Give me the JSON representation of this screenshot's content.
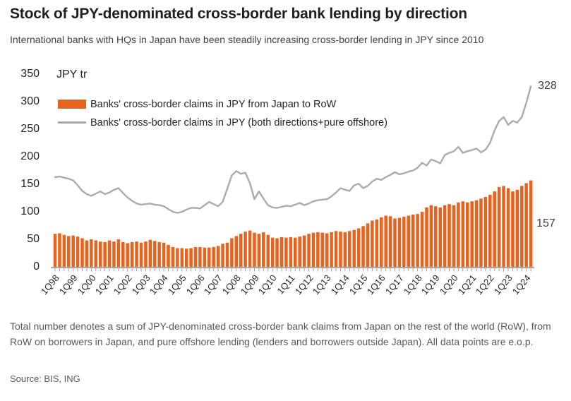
{
  "header": {
    "title": "Stock of JPY-denominated cross-border bank lending by direction",
    "subtitle": "International banks with HQs in Japan have been steadily increasing cross-border lending in JPY since 2010"
  },
  "chart": {
    "unit_label": "JPY tr",
    "legend": [
      {
        "label": "Banks' cross-border claims in JPY from Japan to RoW",
        "color": "#E8641E",
        "type": "bar"
      },
      {
        "label": "Banks' cross-border claims in JPY (both directions+pure offshore)",
        "color": "#ABABAB",
        "type": "line"
      }
    ]
  },
  "chart_data": {
    "type": "bar+line",
    "title": "Stock of JPY-denominated cross-border bank lending by direction",
    "ylabel": "JPY tr",
    "ylim": [
      0,
      350
    ],
    "yticks": [
      0,
      50,
      100,
      150,
      200,
      250,
      300,
      350
    ],
    "grid": false,
    "legend_position": "top-left",
    "x_tick_every": 4,
    "x": [
      "1Q98",
      "2Q98",
      "3Q98",
      "4Q98",
      "1Q99",
      "2Q99",
      "3Q99",
      "4Q99",
      "1Q00",
      "2Q00",
      "3Q00",
      "4Q00",
      "1Q01",
      "2Q01",
      "3Q01",
      "4Q01",
      "1Q02",
      "2Q02",
      "3Q02",
      "4Q02",
      "1Q03",
      "2Q03",
      "3Q03",
      "4Q03",
      "1Q04",
      "2Q04",
      "3Q04",
      "4Q04",
      "1Q05",
      "2Q05",
      "3Q05",
      "4Q05",
      "1Q06",
      "2Q06",
      "3Q06",
      "4Q06",
      "1Q07",
      "2Q07",
      "3Q07",
      "4Q07",
      "1Q08",
      "2Q08",
      "3Q08",
      "4Q08",
      "1Q09",
      "2Q09",
      "3Q09",
      "4Q09",
      "1Q10",
      "2Q10",
      "3Q10",
      "4Q10",
      "1Q11",
      "2Q11",
      "3Q11",
      "4Q11",
      "1Q12",
      "2Q12",
      "3Q12",
      "4Q12",
      "1Q13",
      "2Q13",
      "3Q13",
      "4Q13",
      "1Q14",
      "2Q14",
      "3Q14",
      "4Q14",
      "1Q15",
      "2Q15",
      "3Q15",
      "4Q15",
      "1Q16",
      "2Q16",
      "3Q16",
      "4Q16",
      "1Q17",
      "2Q17",
      "3Q17",
      "4Q17",
      "1Q18",
      "2Q18",
      "3Q18",
      "4Q18",
      "1Q19",
      "2Q19",
      "3Q19",
      "4Q19",
      "1Q20",
      "2Q20",
      "3Q20",
      "4Q20",
      "1Q21",
      "2Q21",
      "3Q21",
      "4Q21",
      "1Q22",
      "2Q22",
      "3Q22",
      "4Q22",
      "1Q23",
      "2Q23",
      "3Q23",
      "4Q23",
      "1Q24",
      "2Q24"
    ],
    "series": [
      {
        "name": "Banks' cross-border claims in JPY from Japan to RoW",
        "type": "bar",
        "color": "#E8641E",
        "values": [
          60,
          61,
          58,
          56,
          57,
          55,
          52,
          48,
          50,
          48,
          46,
          45,
          48,
          46,
          50,
          45,
          43,
          45,
          46,
          44,
          46,
          49,
          47,
          45,
          44,
          40,
          36,
          34,
          34,
          33,
          34,
          36,
          36,
          35,
          35,
          36,
          38,
          42,
          44,
          52,
          56,
          60,
          64,
          66,
          62,
          60,
          63,
          58,
          53,
          52,
          54,
          53,
          54,
          53,
          55,
          57,
          60,
          62,
          63,
          62,
          61,
          63,
          65,
          64,
          63,
          65,
          67,
          70,
          74,
          79,
          84,
          86,
          90,
          93,
          92,
          88,
          89,
          91,
          93,
          95,
          96,
          100,
          108,
          112,
          110,
          108,
          112,
          114,
          112,
          117,
          119,
          117,
          119,
          121,
          124,
          127,
          131,
          137,
          145,
          147,
          143,
          137,
          140,
          147,
          152,
          157
        ]
      },
      {
        "name": "Banks' cross-border claims in JPY (both directions+pure offshore)",
        "type": "line",
        "color": "#ABABAB",
        "values": [
          163,
          164,
          162,
          160,
          157,
          148,
          138,
          132,
          129,
          133,
          137,
          132,
          135,
          140,
          143,
          134,
          126,
          120,
          115,
          113,
          114,
          115,
          113,
          112,
          110,
          105,
          100,
          98,
          100,
          104,
          107,
          107,
          106,
          112,
          118,
          114,
          110,
          118,
          142,
          166,
          174,
          169,
          171,
          152,
          123,
          137,
          124,
          112,
          108,
          107,
          109,
          111,
          110,
          113,
          116,
          112,
          115,
          119,
          121,
          122,
          123,
          128,
          135,
          143,
          140,
          138,
          148,
          151,
          143,
          147,
          155,
          160,
          158,
          163,
          167,
          172,
          168,
          170,
          173,
          175,
          180,
          189,
          184,
          195,
          192,
          188,
          203,
          207,
          210,
          218,
          207,
          210,
          212,
          215,
          208,
          213,
          225,
          248,
          265,
          272,
          258,
          265,
          262,
          272,
          298,
          328
        ]
      }
    ],
    "annotations": [
      {
        "text": "328",
        "series": "line"
      },
      {
        "text": "157",
        "series": "bar"
      }
    ]
  },
  "footer": {
    "note": "Total number denotes a sum of JPY-denominated cross-border bank claims from Japan on the rest of the world (RoW), from RoW on borrowers in Japan, and pure offshore lending (lenders and borrowers outside Japan). All data points are e.o.p.",
    "source": "Source: BIS, ING"
  }
}
